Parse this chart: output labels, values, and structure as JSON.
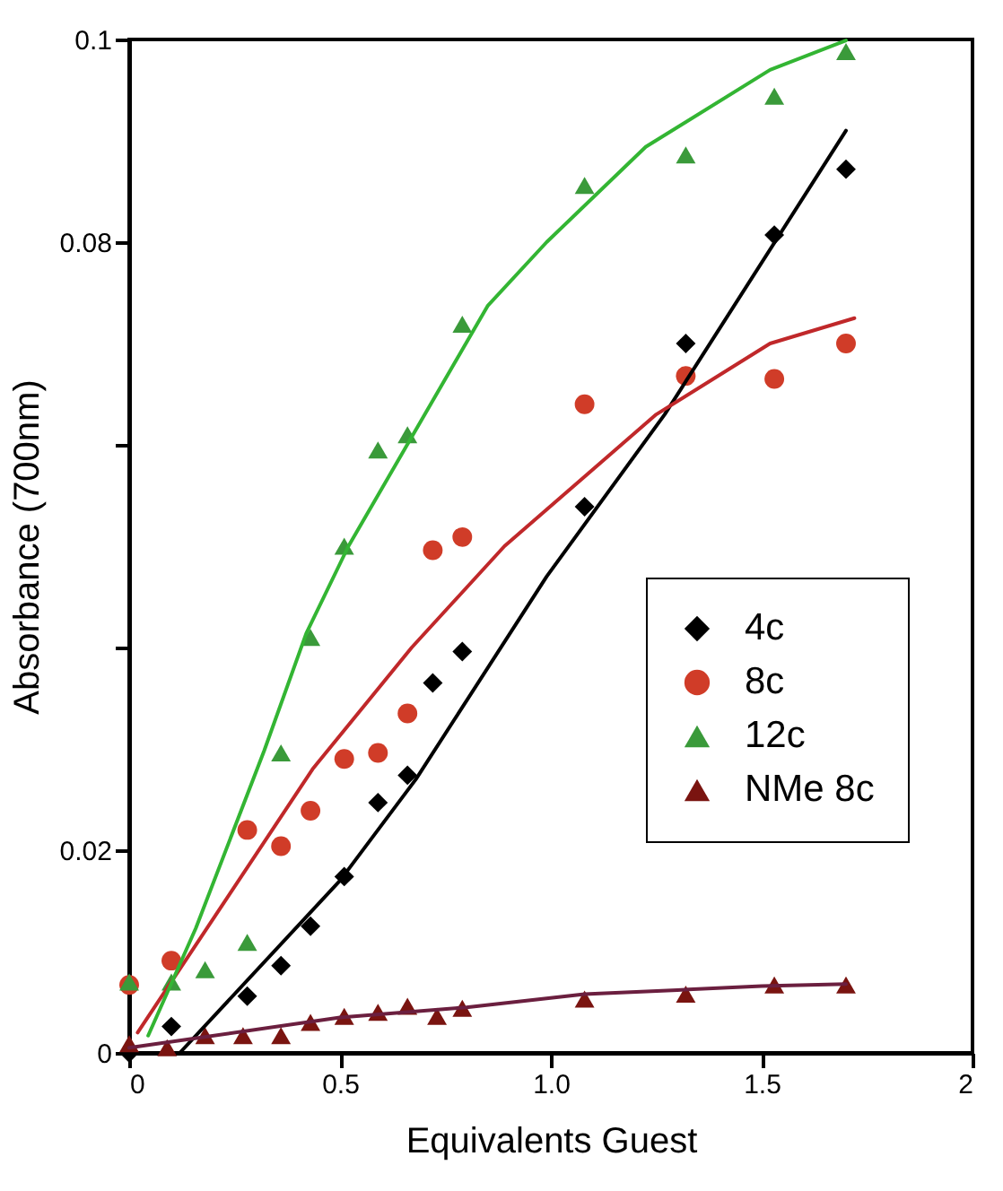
{
  "chart_data": {
    "type": "scatter",
    "xlabel": "Equivalents Guest",
    "ylabel": "Absorbance (700nm)",
    "xlim": [
      0,
      2
    ],
    "ylim": [
      0,
      0.1
    ],
    "xticks": [
      0,
      {
        "value": 0.5,
        "label": "0.5"
      },
      {
        "value": 1,
        "label": "1.0"
      },
      {
        "value": 1.5,
        "label": "1.5"
      },
      2
    ],
    "yticks": [
      0,
      0.02,
      {
        "value": 0.04,
        "label": null
      },
      {
        "value": 0.06,
        "label": null
      },
      0.08,
      0.1
    ],
    "grid": false,
    "legend": "right",
    "series": [
      {
        "name": "4c",
        "marker": "diamond",
        "color": "#000000",
        "x": [
          0,
          0.1,
          0.28,
          0.36,
          0.43,
          0.51,
          0.59,
          0.66,
          0.72,
          0.79,
          1.08,
          1.32,
          1.53,
          1.7
        ],
        "values": [
          0,
          0.0026,
          0.0056,
          0.0086,
          0.0125,
          0.0174,
          0.0247,
          0.0274,
          0.0365,
          0.0396,
          0.0539,
          0.07,
          0.0807,
          0.0872
        ]
      },
      {
        "name": "8c",
        "marker": "circle",
        "color": "#d03c28",
        "x": [
          0,
          0.1,
          0.28,
          0.36,
          0.43,
          0.51,
          0.59,
          0.66,
          0.72,
          0.79,
          1.08,
          1.32,
          1.53,
          1.7
        ],
        "values": [
          0.0067,
          0.0091,
          0.022,
          0.0204,
          0.0239,
          0.029,
          0.0296,
          0.0335,
          0.0496,
          0.0509,
          0.064,
          0.0668,
          0.0665,
          0.07
        ]
      },
      {
        "name": "12c",
        "marker": "triangle",
        "color": "#3a9a3a",
        "x": [
          0,
          0.1,
          0.18,
          0.28,
          0.36,
          0.43,
          0.51,
          0.59,
          0.66,
          0.79,
          1.08,
          1.32,
          1.53,
          1.7
        ],
        "values": [
          0.007,
          0.007,
          0.0082,
          0.0109,
          0.0296,
          0.041,
          0.05,
          0.0595,
          0.061,
          0.0719,
          0.0856,
          0.0886,
          0.0944,
          0.0988
        ]
      },
      {
        "name": "NMe 8c",
        "marker": "triangle",
        "color": "#7a1410",
        "x": [
          0,
          0.09,
          0.18,
          0.27,
          0.36,
          0.43,
          0.51,
          0.59,
          0.66,
          0.73,
          0.79,
          1.08,
          1.32,
          1.53,
          1.7
        ],
        "values": [
          0.0009,
          0.0005,
          0.0017,
          0.0017,
          0.0017,
          0.003,
          0.0036,
          0.004,
          0.0046,
          0.0036,
          0.0044,
          0.0053,
          0.0058,
          0.0067,
          0.0067
        ]
      },
      {
        "type": "line",
        "color": "#000000",
        "x": [
          0.12,
          0.5,
          0.68,
          0.99,
          1.27,
          1.7
        ],
        "values": [
          0,
          0.017,
          0.027,
          0.047,
          0.063,
          0.091
        ]
      },
      {
        "type": "line",
        "color": "#c0282a",
        "x": [
          0.02,
          0.435,
          0.67,
          0.89,
          1.25,
          1.52,
          1.72
        ],
        "values": [
          0.002,
          0.028,
          0.04,
          0.05,
          0.063,
          0.07,
          0.0725
        ]
      },
      {
        "type": "line",
        "color": "#33b533",
        "x": [
          0.045,
          0.158,
          0.32,
          0.42,
          0.52,
          0.85,
          0.99,
          1.225,
          1.52,
          1.7
        ],
        "values": [
          0.0017,
          0.0123,
          0.0298,
          0.0414,
          0.05,
          0.0737,
          0.08,
          0.0894,
          0.097,
          0.0999
        ]
      },
      {
        "type": "line",
        "color": "#6b1f3f",
        "x": [
          0,
          0.5,
          0.8,
          1.08,
          1.3,
          1.5,
          1.7
        ],
        "values": [
          0.0005,
          0.0035,
          0.0045,
          0.0058,
          0.0062,
          0.0066,
          0.0068
        ]
      }
    ]
  }
}
